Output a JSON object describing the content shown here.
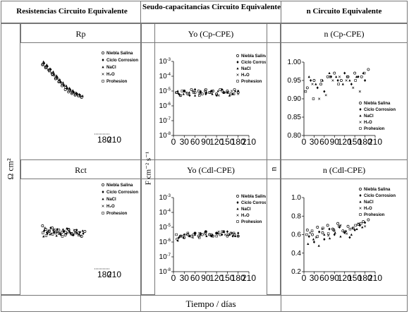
{
  "headers": {
    "col1": "Resistencias  Circuito Equivalente",
    "col2": "Seudo-capacitancias Circuito Equivalente",
    "col3": "n  Circuito Equivalente"
  },
  "row_titles": {
    "rp": "Rp",
    "yo_cp": "Yo (Cp-CPE)",
    "n_cp": "n (Cp-CPE)",
    "rct": "Rct",
    "yo_cdl": "Yo (Cdl-CPE)",
    "n_cdl": "n (Cdl-CPE)"
  },
  "axis_labels": {
    "resistance": "Ω cm²",
    "capacitance": "F cm⁻² s⁻¹",
    "n": "n",
    "time": "Tiempo / días"
  },
  "legend": [
    "Niebla Salina",
    "Ciclo Corrosion",
    "NaCl",
    "H₂O",
    "Prohesion"
  ],
  "chart_data": [
    {
      "id": "rp",
      "type": "scatter",
      "title": "Rp",
      "xticks": [
        "180",
        "210"
      ],
      "series": [
        {
          "name": "Niebla Salina",
          "x": [
            5,
            15,
            25,
            35,
            45,
            55,
            65,
            75,
            85,
            95,
            105,
            115,
            125
          ],
          "y": [
            0.82,
            0.78,
            0.75,
            0.7,
            0.64,
            0.6,
            0.55,
            0.5,
            0.47,
            0.45,
            0.43,
            0.42,
            0.4
          ]
        },
        {
          "name": "Ciclo Corrosion",
          "x": [
            10,
            20,
            30,
            40,
            50,
            60,
            70,
            80,
            90,
            100,
            110,
            120
          ],
          "y": [
            0.84,
            0.8,
            0.76,
            0.7,
            0.66,
            0.6,
            0.56,
            0.52,
            0.5,
            0.47,
            0.45,
            0.43
          ]
        },
        {
          "name": "NaCl",
          "x": [
            8,
            18,
            28,
            38,
            48,
            58,
            68,
            78,
            88,
            98,
            108,
            118,
            128
          ],
          "y": [
            0.86,
            0.82,
            0.77,
            0.73,
            0.68,
            0.63,
            0.59,
            0.55,
            0.52,
            0.49,
            0.46,
            0.44,
            0.42
          ]
        },
        {
          "name": "H₂O",
          "x": [
            12,
            22,
            32,
            42,
            52,
            62,
            72,
            82,
            92,
            102,
            112,
            122
          ],
          "y": [
            0.8,
            0.76,
            0.72,
            0.68,
            0.64,
            0.59,
            0.55,
            0.51,
            0.48,
            0.46,
            0.44,
            0.41
          ]
        },
        {
          "name": "Prohesion",
          "x": [
            6,
            16,
            26,
            36,
            46,
            56,
            66,
            76,
            86,
            96,
            106,
            116
          ],
          "y": [
            0.83,
            0.79,
            0.74,
            0.69,
            0.65,
            0.61,
            0.57,
            0.53,
            0.49,
            0.46,
            0.44,
            0.42
          ]
        }
      ]
    },
    {
      "id": "yo_cp",
      "type": "scatter",
      "yscale": "log",
      "title": "Yo (Cp-CPE)",
      "xlim": [
        0,
        210
      ],
      "xticks": [
        0,
        30,
        60,
        90,
        120,
        150,
        180,
        210
      ],
      "ylim": [
        -8,
        -3
      ],
      "yticks": [
        -3,
        -4,
        -5,
        -6,
        -7,
        -8
      ],
      "series": [
        {
          "name": "Niebla Salina",
          "x": [
            10,
            20,
            30,
            40,
            50,
            60,
            70,
            80,
            90,
            100,
            110,
            120,
            130,
            140,
            150,
            160,
            170,
            180
          ],
          "y": [
            -5.1,
            -5.3,
            -5.0,
            -5.2,
            -4.9,
            -5.1,
            -5.0,
            -5.2,
            -4.9,
            -5.1,
            -5.0,
            -5.2,
            -4.9,
            -5.1,
            -5.0,
            -5.2,
            -4.9,
            -5.1
          ]
        },
        {
          "name": "Ciclo Corrosion",
          "x": [
            15,
            30,
            45,
            60,
            75,
            90,
            105,
            120,
            135,
            150,
            165,
            180
          ],
          "y": [
            -5.2,
            -5.0,
            -5.3,
            -4.9,
            -5.1,
            -5.2,
            -5.0,
            -5.3,
            -4.9,
            -5.1,
            -5.2,
            -5.0
          ]
        },
        {
          "name": "NaCl",
          "x": [
            12,
            28,
            44,
            60,
            76,
            92,
            108,
            124,
            140,
            156,
            172
          ],
          "y": [
            -5.0,
            -5.2,
            -5.1,
            -5.3,
            -5.0,
            -5.1,
            -5.2,
            -5.0,
            -5.1,
            -5.3,
            -5.0
          ]
        },
        {
          "name": "H₂O",
          "x": [
            18,
            36,
            54,
            72,
            90,
            108,
            126,
            144,
            162,
            180
          ],
          "y": [
            -5.3,
            -5.1,
            -5.0,
            -5.2,
            -5.1,
            -5.0,
            -5.3,
            -5.1,
            -5.0,
            -5.2
          ]
        },
        {
          "name": "Prohesion",
          "x": [
            8,
            24,
            40,
            56,
            72,
            88,
            104,
            120,
            136,
            152,
            168
          ],
          "y": [
            -5.1,
            -5.0,
            -5.2,
            -5.1,
            -5.3,
            -5.0,
            -5.1,
            -5.2,
            -5.0,
            -5.1,
            -5.2
          ]
        }
      ]
    },
    {
      "id": "n_cp",
      "type": "scatter",
      "title": "n (Cp-CPE)",
      "xlim": [
        0,
        210
      ],
      "xticks": [
        0,
        30,
        60,
        90,
        120,
        150,
        180,
        210
      ],
      "ylim": [
        0.8,
        1.0
      ],
      "yticks": [
        1.0,
        0.95,
        0.9,
        0.85,
        0.8
      ],
      "series": [
        {
          "name": "Niebla Salina",
          "x": [
            10,
            30,
            50,
            70,
            90,
            110,
            130,
            150,
            170,
            190
          ],
          "y": [
            0.93,
            0.95,
            0.94,
            0.96,
            0.97,
            0.95,
            0.96,
            0.97,
            0.96,
            0.98
          ]
        },
        {
          "name": "Ciclo Corrosion",
          "x": [
            20,
            40,
            60,
            80,
            100,
            120,
            140,
            160,
            180
          ],
          "y": [
            0.95,
            0.93,
            0.92,
            0.96,
            0.95,
            0.97,
            0.94,
            0.96,
            0.95
          ]
        },
        {
          "name": "NaCl",
          "x": [
            15,
            35,
            55,
            75,
            95,
            115,
            135,
            155,
            175
          ],
          "y": [
            0.96,
            0.94,
            0.95,
            0.97,
            0.96,
            0.94,
            0.95,
            0.96,
            0.97
          ]
        },
        {
          "name": "H₂O",
          "x": [
            25,
            45,
            65,
            85,
            105,
            125,
            145,
            165
          ],
          "y": [
            0.94,
            0.9,
            0.91,
            0.95,
            0.96,
            0.95,
            0.93,
            0.92
          ]
        },
        {
          "name": "Prohesion",
          "x": [
            5,
            28,
            52,
            78,
            102,
            128,
            152,
            178
          ],
          "y": [
            0.92,
            0.9,
            0.95,
            0.96,
            0.94,
            0.96,
            0.95,
            0.97
          ]
        }
      ]
    },
    {
      "id": "rct",
      "type": "scatter",
      "title": "Rct",
      "xticks": [
        "180",
        "210"
      ],
      "series": [
        {
          "name": "Niebla Salina",
          "x": [
            5,
            15,
            25,
            35,
            45,
            55,
            65,
            75,
            85,
            95,
            105,
            115,
            125,
            135
          ],
          "y": [
            0.55,
            0.5,
            0.47,
            0.52,
            0.45,
            0.49,
            0.46,
            0.42,
            0.5,
            0.44,
            0.48,
            0.45,
            0.4,
            0.47
          ]
        },
        {
          "name": "Ciclo Corrosion",
          "x": [
            10,
            20,
            30,
            40,
            50,
            60,
            70,
            80,
            90,
            100,
            110,
            120,
            130
          ],
          "y": [
            0.48,
            0.44,
            0.52,
            0.46,
            0.5,
            0.43,
            0.47,
            0.51,
            0.45,
            0.42,
            0.49,
            0.46,
            0.44
          ]
        },
        {
          "name": "NaCl",
          "x": [
            8,
            18,
            28,
            38,
            48,
            58,
            68,
            78,
            88,
            98,
            108,
            118,
            128
          ],
          "y": [
            0.4,
            0.46,
            0.43,
            0.49,
            0.41,
            0.45,
            0.5,
            0.44,
            0.47,
            0.42,
            0.46,
            0.43,
            0.48
          ]
        },
        {
          "name": "H₂O",
          "x": [
            12,
            22,
            32,
            42,
            52,
            62,
            72,
            82,
            92,
            102,
            112,
            122
          ],
          "y": [
            0.52,
            0.47,
            0.44,
            0.5,
            0.46,
            0.42,
            0.48,
            0.45,
            0.43,
            0.49,
            0.44,
            0.41
          ]
        },
        {
          "name": "Prohesion",
          "x": [
            6,
            16,
            26,
            36,
            46,
            56,
            66,
            76,
            86,
            96,
            106,
            116
          ],
          "y": [
            0.45,
            0.41,
            0.48,
            0.43,
            0.47,
            0.44,
            0.4,
            0.46,
            0.49,
            0.43,
            0.45,
            0.42
          ]
        }
      ]
    },
    {
      "id": "yo_cdl",
      "type": "scatter",
      "yscale": "log",
      "title": "Yo (Cdl-CPE)",
      "xlim": [
        0,
        210
      ],
      "xticks": [
        0,
        30,
        60,
        90,
        120,
        150,
        180,
        210
      ],
      "ylim": [
        -8,
        -3
      ],
      "yticks": [
        -3,
        -4,
        -5,
        -6,
        -7,
        -8
      ],
      "series": [
        {
          "name": "Niebla Salina",
          "x": [
            10,
            20,
            30,
            40,
            50,
            60,
            70,
            80,
            90,
            100,
            110,
            120,
            130,
            140,
            150,
            160,
            170,
            180
          ],
          "y": [
            -5.8,
            -5.6,
            -5.7,
            -5.5,
            -5.6,
            -5.4,
            -5.6,
            -5.5,
            -5.3,
            -5.5,
            -5.6,
            -5.4,
            -5.5,
            -5.3,
            -5.6,
            -5.4,
            -5.5,
            -5.6
          ]
        },
        {
          "name": "Ciclo Corrosion",
          "x": [
            15,
            30,
            45,
            60,
            75,
            90,
            105,
            120,
            135,
            150,
            165,
            180
          ],
          "y": [
            -5.7,
            -5.5,
            -5.6,
            -5.4,
            -5.5,
            -5.3,
            -5.6,
            -5.4,
            -5.5,
            -5.3,
            -5.6,
            -5.4
          ]
        },
        {
          "name": "NaCl",
          "x": [
            12,
            28,
            44,
            60,
            76,
            92,
            108,
            124,
            140,
            156,
            172
          ],
          "y": [
            -5.9,
            -5.7,
            -5.6,
            -5.5,
            -5.4,
            -5.6,
            -5.5,
            -5.4,
            -5.3,
            -5.5,
            -5.6
          ]
        },
        {
          "name": "H₂O",
          "x": [
            18,
            36,
            54,
            72,
            90,
            108,
            126,
            144,
            162,
            180
          ],
          "y": [
            -5.6,
            -5.5,
            -5.7,
            -5.4,
            -5.5,
            -5.6,
            -5.3,
            -5.5,
            -5.4,
            -5.6
          ]
        },
        {
          "name": "Prohesion",
          "x": [
            8,
            24,
            40,
            56,
            72,
            88,
            104,
            120,
            136,
            152,
            168
          ],
          "y": [
            -5.5,
            -5.6,
            -5.4,
            -5.5,
            -5.7,
            -5.4,
            -5.5,
            -5.6,
            -5.3,
            -5.5,
            -5.4
          ]
        }
      ]
    },
    {
      "id": "n_cdl",
      "type": "scatter",
      "title": "n (Cdl-CPE)",
      "xlim": [
        0,
        210
      ],
      "xticks": [
        0,
        30,
        60,
        90,
        120,
        150,
        180,
        210
      ],
      "ylim": [
        0.2,
        1.0
      ],
      "yticks": [
        1.0,
        0.8,
        0.6,
        0.4,
        0.2
      ],
      "series": [
        {
          "name": "Niebla Salina",
          "x": [
            10,
            25,
            40,
            55,
            70,
            85,
            100,
            115,
            130,
            145,
            160,
            175,
            190
          ],
          "y": [
            0.65,
            0.6,
            0.68,
            0.62,
            0.7,
            0.66,
            0.72,
            0.64,
            0.69,
            0.67,
            0.71,
            0.74,
            0.76
          ]
        },
        {
          "name": "Ciclo Corrosion",
          "x": [
            15,
            30,
            45,
            60,
            75,
            90,
            105,
            120,
            135,
            150,
            165,
            180
          ],
          "y": [
            0.58,
            0.52,
            0.63,
            0.55,
            0.66,
            0.6,
            0.68,
            0.62,
            0.57,
            0.65,
            0.7,
            0.73
          ]
        },
        {
          "name": "NaCl",
          "x": [
            12,
            28,
            44,
            60,
            76,
            92,
            108,
            124,
            140,
            156,
            172
          ],
          "y": [
            0.5,
            0.55,
            0.48,
            0.6,
            0.56,
            0.62,
            0.58,
            0.64,
            0.6,
            0.66,
            0.68
          ]
        },
        {
          "name": "H₂O",
          "x": [
            18,
            36,
            54,
            72,
            90,
            108,
            126,
            144,
            162,
            180
          ],
          "y": [
            0.62,
            0.57,
            0.66,
            0.59,
            0.64,
            0.7,
            0.61,
            0.67,
            0.72,
            0.69
          ]
        },
        {
          "name": "Prohesion",
          "x": [
            8,
            24,
            40,
            56,
            72,
            88,
            104,
            120,
            136,
            152,
            168
          ],
          "y": [
            0.6,
            0.64,
            0.58,
            0.67,
            0.61,
            0.65,
            0.69,
            0.63,
            0.66,
            0.7,
            0.72
          ]
        }
      ]
    }
  ]
}
